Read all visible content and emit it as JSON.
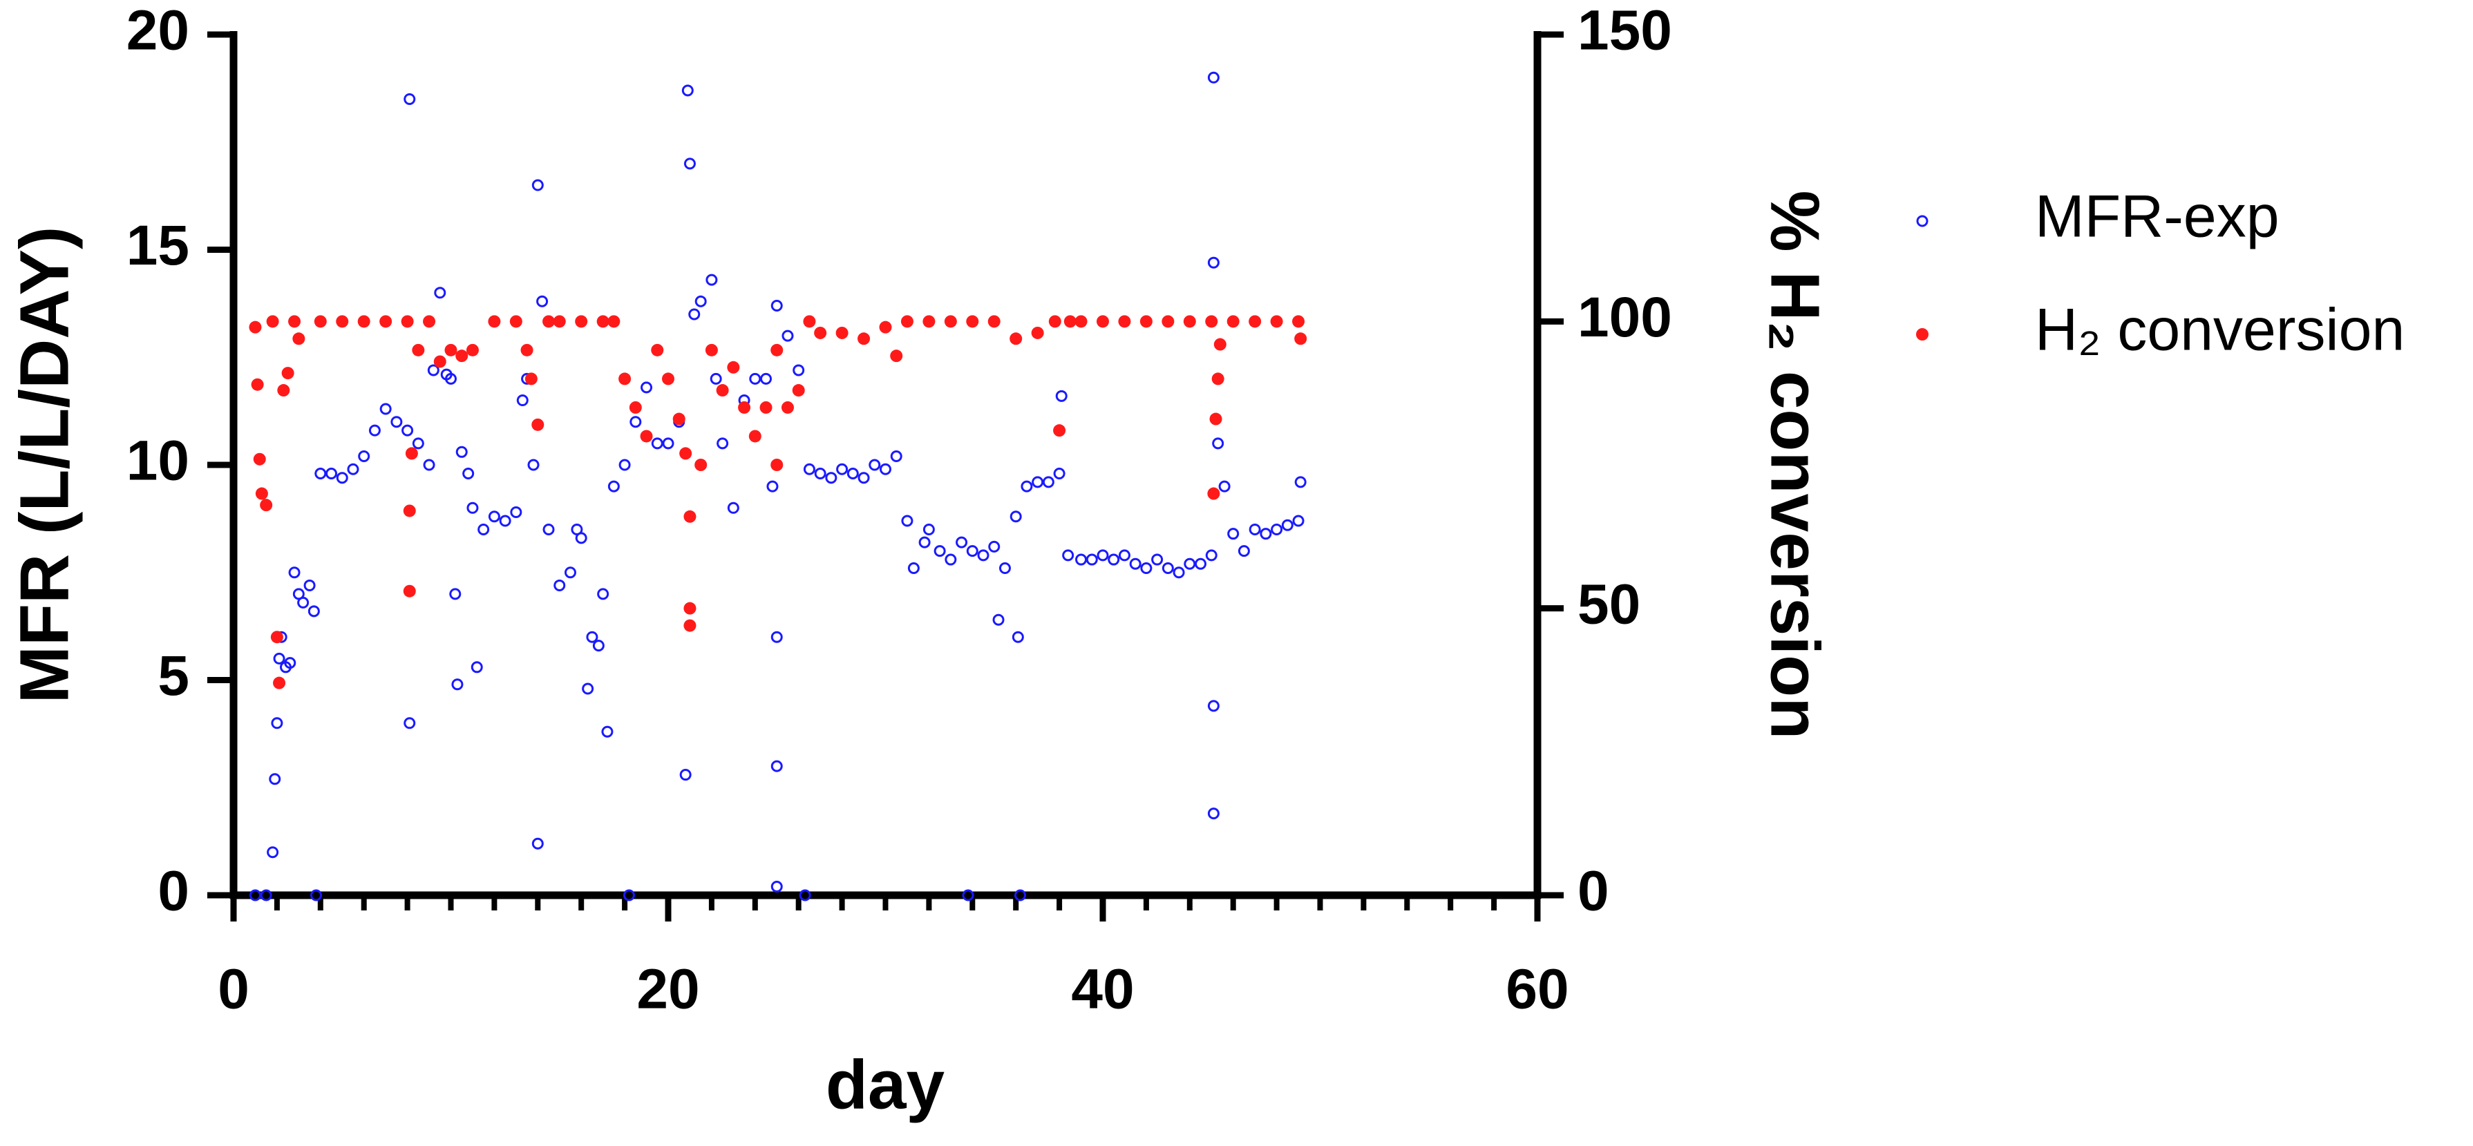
{
  "chart_data": {
    "type": "scatter",
    "xlabel": "day",
    "ylabel": "MFR (L/L/DAY)",
    "y2label": "% H₂ conversion",
    "xlim": [
      0,
      60
    ],
    "xticks": [
      0,
      20,
      40,
      60
    ],
    "ylim": [
      0,
      20
    ],
    "yticks": [
      0,
      5,
      10,
      15,
      20
    ],
    "y2lim": [
      0,
      150
    ],
    "y2ticks": [
      0,
      50,
      100,
      150
    ],
    "legend": "right",
    "series": [
      {
        "name": "MFR-exp",
        "color": "#1a1aff",
        "marker": "open",
        "x": [
          1.0,
          1.5,
          1.8,
          1.9,
          2.0,
          2.1,
          2.2,
          2.4,
          2.6,
          2.8,
          3.0,
          3.2,
          3.5,
          3.7,
          3.8,
          4.0,
          4.5,
          5,
          5.5,
          6,
          6.5,
          7,
          7.5,
          8,
          8.1,
          8.1,
          8.5,
          9,
          9.2,
          9.5,
          9.8,
          10,
          10.2,
          10.3,
          10.5,
          10.8,
          11,
          11.2,
          11.5,
          12,
          12.5,
          13,
          13.3,
          13.5,
          13.8,
          14,
          14,
          14.2,
          14.5,
          15,
          15.5,
          15.8,
          16,
          16.3,
          16.5,
          16.8,
          17,
          17.2,
          17.5,
          18,
          18.2,
          18.5,
          19,
          19.5,
          20,
          20.5,
          20.8,
          20.9,
          21,
          21.2,
          21.5,
          22,
          22.2,
          22.5,
          23,
          23.5,
          24,
          24.5,
          24.8,
          25,
          25,
          25,
          25,
          25.5,
          26,
          26.3,
          26.5,
          27,
          27.5,
          28,
          28.5,
          29,
          29.5,
          30,
          30.5,
          31,
          31.3,
          31.8,
          32,
          32.5,
          33,
          33.5,
          33.8,
          34,
          34.5,
          35,
          35.2,
          35.5,
          36,
          36.1,
          36.2,
          36.5,
          37,
          37.5,
          38,
          38.1,
          38.4,
          39,
          39.5,
          40,
          40.5,
          41,
          41.5,
          42,
          42.5,
          43,
          43.5,
          44,
          44.5,
          45,
          45.1,
          45.1,
          45.1,
          45.1,
          45.3,
          45.6,
          46,
          46.5,
          47,
          47.5,
          48,
          48.5,
          49,
          49.1
        ],
        "values": [
          0,
          0,
          1,
          2.7,
          4,
          5.5,
          6,
          5.3,
          5.4,
          7.5,
          7,
          6.8,
          7.2,
          6.6,
          0,
          9.8,
          9.8,
          9.7,
          9.9,
          10.2,
          10.8,
          11.3,
          11,
          10.8,
          18.5,
          4,
          10.5,
          10,
          12.2,
          14,
          12.1,
          12,
          7,
          4.9,
          10.3,
          9.8,
          9,
          5.3,
          8.5,
          8.8,
          8.7,
          8.9,
          11.5,
          12,
          10,
          16.5,
          1.2,
          13.8,
          8.5,
          7.2,
          7.5,
          8.5,
          8.3,
          4.8,
          6,
          5.8,
          7,
          3.8,
          9.5,
          10,
          0,
          11,
          11.8,
          10.5,
          10.5,
          11,
          2.8,
          18.7,
          17,
          13.5,
          13.8,
          14.3,
          12,
          10.5,
          9,
          11.5,
          12,
          12,
          9.5,
          13.7,
          6,
          3,
          0.2,
          13,
          12.2,
          0,
          9.9,
          9.8,
          9.7,
          9.9,
          9.8,
          9.7,
          10,
          9.9,
          10.2,
          8.7,
          7.6,
          8.2,
          8.5,
          8,
          7.8,
          8.2,
          0,
          8,
          7.9,
          8.1,
          6.4,
          7.6,
          8.8,
          6,
          0,
          9.5,
          9.6,
          9.6,
          9.8,
          11.6,
          7.9,
          7.8,
          7.8,
          7.9,
          7.8,
          7.9,
          7.7,
          7.6,
          7.8,
          7.6,
          7.5,
          7.7,
          7.7,
          7.9,
          19,
          14.7,
          4.4,
          1.9,
          10.5,
          9.5,
          8.4,
          8,
          8.5,
          8.4,
          8.5,
          8.6,
          8.7,
          9.6
        ]
      },
      {
        "name": "H₂ conversion",
        "color": "#ff1a1a",
        "marker": "filled",
        "axis": "y2",
        "x": [
          1.0,
          1.1,
          1.2,
          1.3,
          1.5,
          1.8,
          2.0,
          2.1,
          2.3,
          2.5,
          2.8,
          3,
          4,
          5,
          6,
          7,
          8,
          8.1,
          8.1,
          8.2,
          8.5,
          9,
          9.5,
          10,
          10.5,
          11,
          12,
          13,
          13.5,
          13.7,
          14,
          14.5,
          15,
          16,
          17,
          17.5,
          18,
          18.5,
          19,
          19.5,
          20,
          20.5,
          20.8,
          21,
          21,
          21,
          21.5,
          22,
          22.5,
          23,
          23.5,
          24,
          24.5,
          25,
          25,
          25.5,
          26,
          26.5,
          27,
          28,
          29,
          30,
          30.5,
          31,
          32,
          33,
          34,
          35,
          36,
          37,
          37.8,
          38,
          38.5,
          39,
          40,
          41,
          42,
          43,
          44,
          45,
          45.1,
          45.2,
          45.3,
          45.4,
          46,
          47,
          48,
          49,
          49.1
        ],
        "values": [
          99,
          89,
          76,
          70,
          68,
          100,
          45,
          37,
          88,
          91,
          100,
          97,
          100,
          100,
          100,
          100,
          100,
          53,
          67,
          77,
          95,
          100,
          93,
          95,
          94,
          95,
          100,
          100,
          95,
          90,
          82,
          100,
          100,
          100,
          100,
          100,
          90,
          85,
          80,
          95,
          90,
          83,
          77,
          66,
          50,
          47,
          75,
          95,
          88,
          92,
          85,
          80,
          85,
          95,
          75,
          85,
          88,
          100,
          98,
          98,
          97,
          99,
          94,
          100,
          100,
          100,
          100,
          100,
          97,
          98,
          100,
          81,
          100,
          100,
          100,
          100,
          100,
          100,
          100,
          100,
          70,
          83,
          90,
          96,
          100,
          100,
          100,
          100,
          97
        ]
      }
    ]
  }
}
